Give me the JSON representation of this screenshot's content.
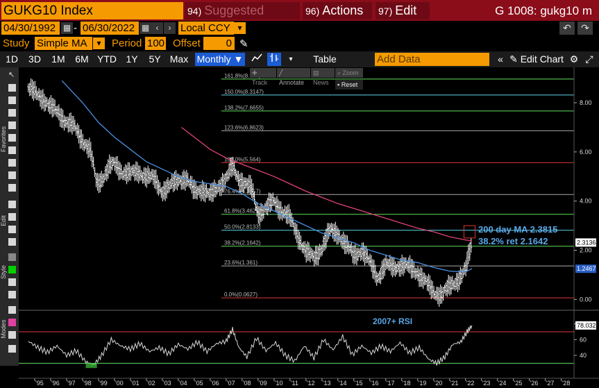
{
  "header": {
    "ticker": "GUKG10 Index",
    "suggested": {
      "num": "94)",
      "label": "Suggested Charts"
    },
    "actions": {
      "num": "96)",
      "label": "Actions ▼"
    },
    "edit": {
      "num": "97)",
      "label": "Edit ▼"
    },
    "right_title": "G 1008: gukg10 m"
  },
  "dates": {
    "start": "04/30/1992",
    "dash": "-",
    "end": "06/30/2022",
    "currency": "Local CCY"
  },
  "study": {
    "label": "Study",
    "value": "Simple MA",
    "period_label": "Period",
    "period_value": "100",
    "offset_label": "Offset",
    "offset_value": "0"
  },
  "toolbar": {
    "ranges": [
      "1D",
      "3D",
      "1M",
      "6M",
      "YTD",
      "1Y",
      "5Y",
      "Max"
    ],
    "frequency": "Monthly ▼",
    "table": "Table",
    "add_data_placeholder": "Add Data",
    "edit_chart": "Edit Chart"
  },
  "overlay": {
    "track": "Track",
    "annotate": "Annotate",
    "news": "News",
    "zoom": "Zoom",
    "reset": "Reset"
  },
  "rail": {
    "favorites": "Favorites",
    "edit": "Edit",
    "style": "Style",
    "modes": "Modes"
  },
  "colors": {
    "accent": "#f59a00",
    "header_bg": "#8b0d1a",
    "price": "#ffffff",
    "ma100": "#4a90e2",
    "ma200": "#e0437a",
    "annotation": "#5aa7e8"
  },
  "annotations": {
    "line1": "200 day MA 2.3815",
    "line2": "38.2% ret 2.1642",
    "rsi_label": "2007+ RSI"
  },
  "price_tags": {
    "last": "2.3136",
    "ma": "1.2467",
    "rsi": "78.032"
  },
  "chart_data": [
    {
      "type": "line",
      "title": "",
      "x_ticks": [
        "'95",
        "'96",
        "'97",
        "'98",
        "'99",
        "'00",
        "'01",
        "'02",
        "'03",
        "'04",
        "'05",
        "'06",
        "'07",
        "'08",
        "'09",
        "'10",
        "'11",
        "'12",
        "'13",
        "'14",
        "'15",
        "'16",
        "'17",
        "'18",
        "'19",
        "'20",
        "'21",
        "'22",
        "'23",
        "'24",
        "'25",
        "'26",
        "'27",
        "'28"
      ],
      "y_ticks": [
        "0.00",
        "2.00",
        "4.00",
        "6.00",
        "8.00"
      ],
      "ylim": [
        -0.3,
        9.3
      ],
      "series": [
        {
          "style": "bar-ohlc",
          "x": [
            1994.6,
            1995.0,
            1995.5,
            1996.0,
            1996.5,
            1997.0,
            1997.5,
            1998.0,
            1998.5,
            1998.9,
            1999.3,
            1999.7,
            2000.0,
            2000.5,
            2001.0,
            2001.5,
            2002.0,
            2002.5,
            2003.0,
            2003.5,
            2004.0,
            2004.5,
            2005.0,
            2005.5,
            2006.0,
            2006.5,
            2007.0,
            2007.4,
            2007.8,
            2008.2,
            2008.6,
            2009.0,
            2009.5,
            2010.0,
            2010.5,
            2011.0,
            2011.5,
            2012.0,
            2012.5,
            2013.0,
            2013.5,
            2014.0,
            2014.5,
            2015.0,
            2015.5,
            2016.0,
            2016.5,
            2017.0,
            2017.5,
            2018.0,
            2018.5,
            2019.0,
            2019.5,
            2020.0,
            2020.5,
            2021.0,
            2021.5,
            2022.0,
            2022.4
          ],
          "values": [
            8.6,
            8.4,
            8.2,
            7.8,
            7.6,
            7.2,
            7.0,
            6.5,
            6.0,
            4.7,
            5.0,
            5.4,
            5.5,
            5.2,
            5.1,
            5.2,
            5.0,
            4.9,
            4.4,
            4.6,
            4.9,
            4.9,
            4.4,
            4.5,
            4.2,
            4.6,
            4.9,
            5.4,
            4.9,
            4.7,
            4.5,
            3.5,
            3.7,
            4.0,
            3.6,
            3.3,
            2.6,
            1.9,
            1.7,
            2.1,
            2.8,
            2.7,
            2.2,
            1.8,
            2.0,
            1.5,
            0.9,
            1.4,
            1.3,
            1.4,
            1.3,
            1.1,
            0.7,
            0.3,
            0.2,
            0.5,
            0.8,
            1.2,
            2.3
          ]
        },
        {
          "name": "",
          "color": "#4a90e2",
          "x": [
            1996.7,
            1998.0,
            1999.0,
            2000.0,
            2001.0,
            2002.0,
            2003.0,
            2004.0,
            2005.0,
            2006.0,
            2007.0,
            2008.0,
            2009.0,
            2010.0,
            2011.0,
            2012.0,
            2013.0,
            2014.0,
            2015.0,
            2016.0,
            2017.0,
            2018.0,
            2019.0,
            2020.0,
            2021.0,
            2022.0,
            2022.4
          ],
          "values": [
            8.9,
            8.0,
            7.2,
            6.6,
            6.1,
            5.6,
            5.3,
            5.0,
            4.8,
            4.7,
            4.6,
            4.3,
            3.9,
            3.6,
            3.3,
            3.0,
            2.7,
            2.5,
            2.3,
            2.0,
            1.8,
            1.6,
            1.5,
            1.3,
            1.15,
            1.12,
            1.25
          ]
        },
        {
          "name": "",
          "color": "#e0437a",
          "x": [
            2004.2,
            2005.0,
            2006.0,
            2007.0,
            2008.0,
            2009.0,
            2010.0,
            2011.0,
            2012.0,
            2013.0,
            2014.0,
            2015.0,
            2016.0,
            2017.0,
            2018.0,
            2019.0,
            2020.0,
            2021.0,
            2022.0,
            2022.4
          ],
          "values": [
            7.0,
            6.6,
            6.1,
            5.75,
            5.5,
            5.25,
            5.0,
            4.7,
            4.4,
            4.15,
            3.9,
            3.7,
            3.5,
            3.3,
            3.1,
            2.9,
            2.75,
            2.55,
            2.42,
            2.38
          ]
        }
      ],
      "fibonacci": [
        {
          "label": "161.8%(8.963)",
          "value": 8.963,
          "color": "#5fe05f"
        },
        {
          "label": "150.0%(8.3147)",
          "value": 8.3147,
          "color": "#5ad8e8"
        },
        {
          "label": "138.2%(7.6655)",
          "value": 7.6655,
          "color": "#5fe05f"
        },
        {
          "label": "123.6%(6.8623)",
          "value": 6.8623,
          "color": "#aaaaaa"
        },
        {
          "label": "100.0%(5.564)",
          "value": 5.564,
          "color": "#e03535"
        },
        {
          "label": "76.4%(4.2657)",
          "value": 4.2657,
          "color": "#aaaaaa"
        },
        {
          "label": "61.8%(3.4625)",
          "value": 3.4625,
          "color": "#5fe05f"
        },
        {
          "label": "50.0%(2.8133)",
          "value": 2.8133,
          "color": "#5ad8e8"
        },
        {
          "label": "38.2%(2.1642)",
          "value": 2.1642,
          "color": "#5fe05f"
        },
        {
          "label": "23.6%(1.361)",
          "value": 1.361,
          "color": "#aaaaaa"
        },
        {
          "label": "0.0%(0.0627)",
          "value": 0.0627,
          "color": "#e03535"
        }
      ],
      "highlight_box": {
        "x": [
          2021.9,
          2022.6
        ],
        "y": [
          2.5,
          3.0
        ]
      }
    },
    {
      "type": "line",
      "title": "",
      "ylabel": "",
      "y_ticks": [
        "40",
        "60",
        "80"
      ],
      "ylim": [
        18,
        92
      ],
      "levels": [
        {
          "value": 70,
          "color": "#e03535"
        },
        {
          "value": 30,
          "color": "#5fe05f"
        }
      ],
      "series": [
        {
          "name": "",
          "color": "#d8d8d8",
          "x": [
            1994.6,
            1995.2,
            1995.8,
            1996.4,
            1997.0,
            1997.6,
            1998.2,
            1998.7,
            1999.2,
            1999.8,
            2000.4,
            2001.0,
            2001.6,
            2002.2,
            2002.8,
            2003.4,
            2004.0,
            2004.6,
            2005.2,
            2005.8,
            2006.4,
            2007.0,
            2007.4,
            2007.8,
            2008.3,
            2008.9,
            2009.5,
            2010.1,
            2010.7,
            2011.3,
            2011.9,
            2012.5,
            2013.1,
            2013.7,
            2014.3,
            2014.9,
            2015.5,
            2016.1,
            2016.7,
            2017.3,
            2017.9,
            2018.5,
            2019.1,
            2019.7,
            2020.2,
            2020.7,
            2021.2,
            2021.7,
            2022.1,
            2022.4
          ],
          "values": [
            58,
            50,
            44,
            52,
            40,
            46,
            32,
            28,
            40,
            60,
            52,
            48,
            55,
            45,
            50,
            42,
            54,
            48,
            57,
            45,
            55,
            58,
            73,
            50,
            38,
            62,
            46,
            56,
            40,
            33,
            52,
            37,
            60,
            47,
            64,
            41,
            52,
            43,
            52,
            45,
            56,
            43,
            50,
            35,
            30,
            38,
            54,
            57,
            70,
            78
          ]
        }
      ]
    }
  ]
}
